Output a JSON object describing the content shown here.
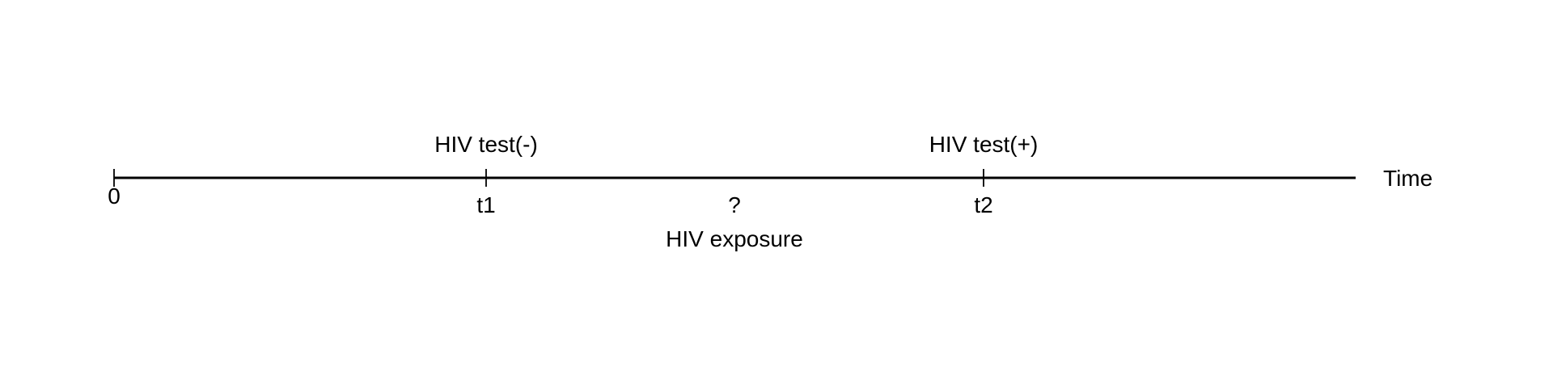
{
  "axis": {
    "label": "Time"
  },
  "ticks": [
    {
      "label": "0"
    },
    {
      "label": "t1",
      "event": "HIV test(-)"
    },
    {
      "label": "t2",
      "event": "HIV test(+)"
    }
  ],
  "unknown": {
    "mark": "?",
    "label": "HIV exposure"
  },
  "colors": {
    "line": "#000000",
    "text": "#000000"
  }
}
